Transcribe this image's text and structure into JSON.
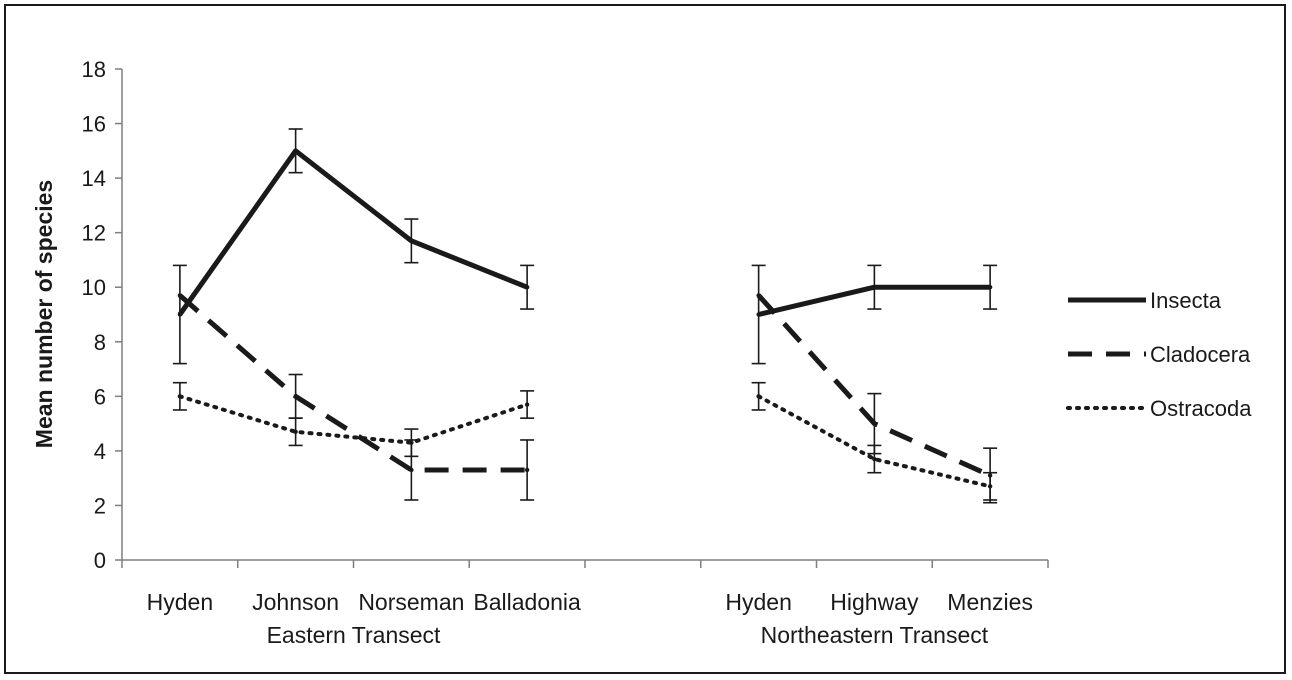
{
  "chart_data": {
    "type": "line",
    "ylabel": "Mean number of species",
    "xlabel": "",
    "ylim": [
      0,
      18
    ],
    "yticks": [
      0,
      2,
      4,
      6,
      8,
      10,
      12,
      14,
      16,
      18
    ],
    "grid": false,
    "legend_position": "right",
    "groups": [
      {
        "label": "Eastern Transect",
        "categories": [
          "Hyden",
          "Johnson",
          "Norseman",
          "Balladonia"
        ]
      },
      {
        "label": "Northeastern Transect",
        "categories": [
          "Hyden",
          "Highway",
          "Menzies"
        ]
      }
    ],
    "series": [
      {
        "name": "Insecta",
        "style": "solid",
        "color": "#1a1a1a",
        "groups": [
          {
            "values": [
              9.0,
              15.0,
              11.7,
              10.0
            ],
            "errors": [
              1.8,
              0.8,
              0.8,
              0.8
            ]
          },
          {
            "values": [
              9.0,
              10.0,
              10.0
            ],
            "errors": [
              1.8,
              0.8,
              0.8
            ]
          }
        ]
      },
      {
        "name": "Cladocera",
        "style": "dashed",
        "color": "#1a1a1a",
        "groups": [
          {
            "values": [
              9.7,
              6.0,
              3.3,
              3.3
            ],
            "errors": [
              0.0,
              0.8,
              1.1,
              1.1
            ]
          },
          {
            "values": [
              9.7,
              5.0,
              3.1
            ],
            "errors": [
              0.0,
              1.1,
              1.0
            ]
          }
        ]
      },
      {
        "name": "Ostracoda",
        "style": "dotted",
        "color": "#1a1a1a",
        "groups": [
          {
            "values": [
              6.0,
              4.7,
              4.3,
              5.7
            ],
            "errors": [
              0.5,
              0.5,
              0.5,
              0.5
            ]
          },
          {
            "values": [
              6.0,
              3.7,
              2.7
            ],
            "errors": [
              0.5,
              0.5,
              0.5
            ]
          }
        ]
      }
    ]
  }
}
